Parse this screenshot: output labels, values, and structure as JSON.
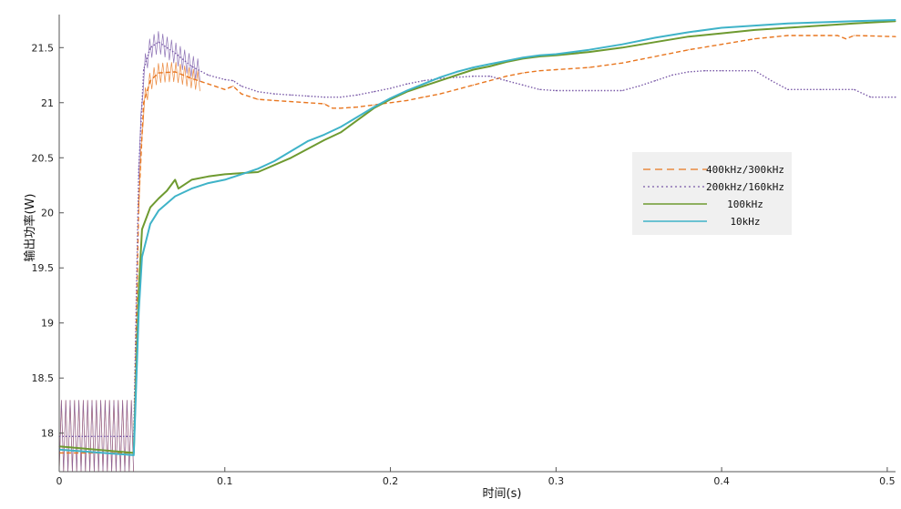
{
  "chart_data": {
    "type": "line",
    "title": "",
    "xlabel": "时间(s)",
    "ylabel": "输出功率(W)",
    "xlim": [
      0,
      0.505
    ],
    "ylim": [
      17.65,
      21.8
    ],
    "x_ticks": [
      "0",
      "0.1",
      "0.2",
      "0.3",
      "0.4",
      "0.5"
    ],
    "y_ticks": [
      "18",
      "18.5",
      "19",
      "19.5",
      "20",
      "20.5",
      "21",
      "21.5"
    ],
    "grid": false,
    "legend_position": "right",
    "series": [
      {
        "name": "400kHz/300kHz",
        "color": "#e8761f",
        "style": "dashed",
        "x": [
          0,
          0.045,
          0.048,
          0.051,
          0.055,
          0.06,
          0.07,
          0.08,
          0.09,
          0.1,
          0.105,
          0.11,
          0.12,
          0.13,
          0.14,
          0.15,
          0.16,
          0.165,
          0.17,
          0.18,
          0.19,
          0.2,
          0.21,
          0.22,
          0.23,
          0.24,
          0.25,
          0.26,
          0.27,
          0.28,
          0.29,
          0.3,
          0.32,
          0.34,
          0.36,
          0.38,
          0.4,
          0.42,
          0.44,
          0.46,
          0.47,
          0.475,
          0.48,
          0.505
        ],
        "y": [
          17.82,
          17.82,
          20.1,
          21.0,
          21.2,
          21.27,
          21.28,
          21.22,
          21.17,
          21.12,
          21.15,
          21.08,
          21.03,
          21.02,
          21.01,
          21.0,
          20.99,
          20.95,
          20.95,
          20.96,
          20.98,
          21.0,
          21.02,
          21.05,
          21.08,
          21.12,
          21.16,
          21.2,
          21.24,
          21.27,
          21.29,
          21.3,
          21.32,
          21.36,
          21.42,
          21.48,
          21.53,
          21.58,
          21.61,
          21.61,
          21.61,
          21.58,
          21.61,
          21.6
        ]
      },
      {
        "name": "200kHz/160kHz",
        "color": "#7a5aa8",
        "style": "dotted",
        "x": [
          0,
          0.045,
          0.048,
          0.051,
          0.055,
          0.06,
          0.07,
          0.08,
          0.09,
          0.1,
          0.105,
          0.11,
          0.12,
          0.13,
          0.14,
          0.15,
          0.16,
          0.17,
          0.18,
          0.19,
          0.2,
          0.21,
          0.22,
          0.23,
          0.24,
          0.25,
          0.26,
          0.27,
          0.28,
          0.29,
          0.3,
          0.32,
          0.34,
          0.35,
          0.36,
          0.37,
          0.38,
          0.39,
          0.4,
          0.42,
          0.43,
          0.44,
          0.46,
          0.48,
          0.49,
          0.505
        ],
        "y": [
          17.97,
          17.97,
          20.4,
          21.3,
          21.5,
          21.55,
          21.45,
          21.33,
          21.25,
          21.21,
          21.2,
          21.15,
          21.1,
          21.08,
          21.07,
          21.06,
          21.05,
          21.05,
          21.07,
          21.1,
          21.13,
          21.17,
          21.2,
          21.22,
          21.23,
          21.24,
          21.24,
          21.2,
          21.16,
          21.12,
          21.11,
          21.11,
          21.11,
          21.15,
          21.2,
          21.25,
          21.28,
          21.29,
          21.29,
          21.29,
          21.2,
          21.12,
          21.12,
          21.12,
          21.05,
          21.05
        ]
      },
      {
        "name": "100kHz",
        "color": "#6e9a30",
        "style": "solid",
        "x": [
          0,
          0.045,
          0.048,
          0.05,
          0.055,
          0.06,
          0.065,
          0.07,
          0.072,
          0.08,
          0.09,
          0.1,
          0.12,
          0.14,
          0.16,
          0.17,
          0.18,
          0.19,
          0.2,
          0.21,
          0.22,
          0.23,
          0.24,
          0.25,
          0.26,
          0.27,
          0.28,
          0.29,
          0.3,
          0.32,
          0.34,
          0.36,
          0.38,
          0.4,
          0.42,
          0.44,
          0.46,
          0.48,
          0.505
        ],
        "y": [
          17.88,
          17.82,
          19.3,
          19.85,
          20.05,
          20.13,
          20.2,
          20.3,
          20.22,
          20.3,
          20.33,
          20.35,
          20.37,
          20.5,
          20.66,
          20.73,
          20.84,
          20.95,
          21.03,
          21.1,
          21.15,
          21.2,
          21.25,
          21.3,
          21.33,
          21.37,
          21.4,
          21.42,
          21.43,
          21.46,
          21.5,
          21.55,
          21.6,
          21.63,
          21.66,
          21.68,
          21.7,
          21.72,
          21.74
        ]
      },
      {
        "name": "10kHz",
        "color": "#3fb3c8",
        "style": "solid",
        "x": [
          0,
          0.045,
          0.048,
          0.05,
          0.055,
          0.06,
          0.07,
          0.08,
          0.09,
          0.1,
          0.11,
          0.12,
          0.13,
          0.14,
          0.15,
          0.16,
          0.17,
          0.18,
          0.19,
          0.2,
          0.21,
          0.22,
          0.23,
          0.24,
          0.25,
          0.26,
          0.27,
          0.28,
          0.29,
          0.3,
          0.32,
          0.34,
          0.36,
          0.38,
          0.4,
          0.42,
          0.44,
          0.46,
          0.48,
          0.505
        ],
        "y": [
          17.85,
          17.8,
          19.1,
          19.6,
          19.9,
          20.02,
          20.15,
          20.22,
          20.27,
          20.3,
          20.35,
          20.4,
          20.47,
          20.56,
          20.65,
          20.71,
          20.78,
          20.87,
          20.96,
          21.04,
          21.11,
          21.17,
          21.23,
          21.28,
          21.32,
          21.35,
          21.38,
          21.41,
          21.43,
          21.44,
          21.48,
          21.53,
          21.59,
          21.64,
          21.68,
          21.7,
          21.72,
          21.73,
          21.74,
          21.75
        ]
      }
    ],
    "oscillation_bands": [
      {
        "series": 0,
        "x": [
          0,
          0.046
        ],
        "y": [
          17.65,
          18.3
        ]
      },
      {
        "series": 1,
        "x": [
          0,
          0.046
        ],
        "y": [
          17.65,
          18.3
        ]
      },
      {
        "series": 0,
        "x": [
          0.048,
          0.085
        ],
        "y_offset": 0.09
      },
      {
        "series": 1,
        "x": [
          0.048,
          0.085
        ],
        "y_offset": 0.1
      }
    ]
  }
}
